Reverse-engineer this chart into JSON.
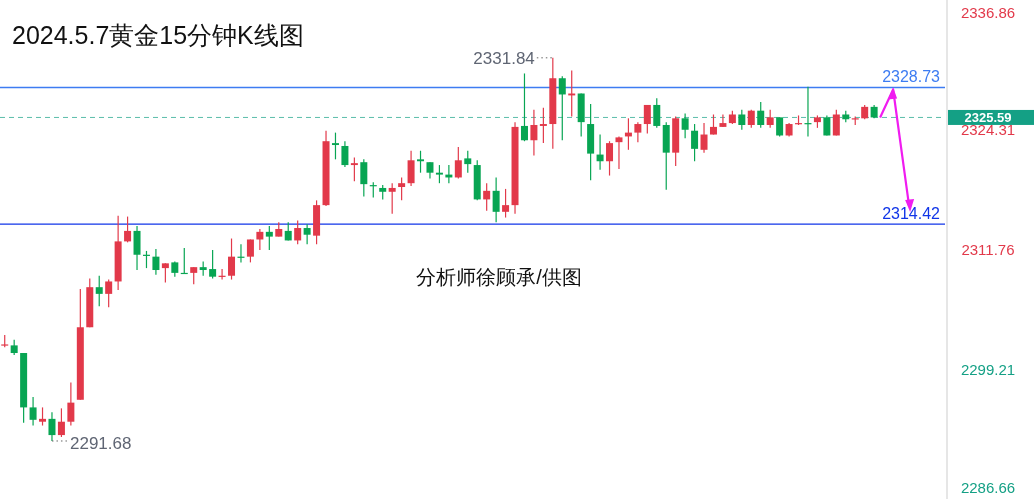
{
  "chart_data": {
    "type": "candlestick",
    "title": "2024.5.7黄金15分钟K线图",
    "categories": [
      null,
      null,
      null,
      null,
      null,
      null,
      null,
      null,
      null,
      null,
      null,
      null,
      null,
      null,
      null,
      null,
      null,
      null,
      null,
      null,
      null,
      null,
      null,
      null,
      null,
      null,
      null,
      null,
      null,
      null,
      null,
      null,
      null,
      null,
      null,
      null,
      null,
      null,
      null,
      null,
      null,
      null,
      null,
      null,
      null,
      null,
      null,
      null,
      null,
      null,
      null,
      null,
      null,
      null,
      null,
      null,
      null,
      null,
      null,
      null,
      null,
      null,
      null,
      null,
      null,
      null,
      null,
      null,
      null,
      null,
      null,
      null,
      null,
      null,
      null,
      null,
      null,
      null,
      null,
      null,
      null,
      null,
      null,
      null,
      null,
      null,
      null,
      null,
      null,
      null,
      null,
      null,
      null,
      null,
      null,
      null,
      null,
      null,
      null,
      null
    ],
    "ohlc": [
      [
        2301.7,
        2302.8,
        2301.5,
        2301.8
      ],
      [
        2301.7,
        2302.3,
        2300.7,
        2300.9
      ],
      [
        2300.9,
        2300.9,
        2293.6,
        2295.2
      ],
      [
        2295.2,
        2296.3,
        2293.3,
        2293.9
      ],
      [
        2293.7,
        2295.2,
        2293.3,
        2294.0
      ],
      [
        2294.0,
        2294.7,
        2291.68,
        2292.3
      ],
      [
        2292.3,
        2295.1,
        2292.1,
        2293.7
      ],
      [
        2293.7,
        2297.8,
        2293.3,
        2295.7
      ],
      [
        2296.0,
        2307.6,
        2296.0,
        2303.6
      ],
      [
        2303.6,
        2308.7,
        2303.6,
        2307.8
      ],
      [
        2307.8,
        2309.0,
        2305.8,
        2307.1
      ],
      [
        2307.1,
        2308.6,
        2305.7,
        2308.4
      ],
      [
        2308.4,
        2315.3,
        2307.5,
        2312.6
      ],
      [
        2312.6,
        2315.2,
        2312.5,
        2313.7
      ],
      [
        2313.7,
        2314.2,
        2309.6,
        2311.2
      ],
      [
        2311.2,
        2311.6,
        2309.8,
        2311.1
      ],
      [
        2311.0,
        2311.8,
        2309.1,
        2309.6
      ],
      [
        2309.8,
        2310.3,
        2308.3,
        2310.3
      ],
      [
        2310.4,
        2310.5,
        2308.9,
        2309.3
      ],
      [
        2309.3,
        2311.9,
        2309.2,
        2309.2
      ],
      [
        2309.3,
        2309.9,
        2308.1,
        2309.9
      ],
      [
        2309.9,
        2310.5,
        2309.0,
        2309.6
      ],
      [
        2309.7,
        2311.7,
        2308.7,
        2308.9
      ],
      [
        2308.9,
        2309.7,
        2308.6,
        2309.0
      ],
      [
        2309.0,
        2312.9,
        2308.6,
        2311.0
      ],
      [
        2311.0,
        2312.3,
        2310.4,
        2310.9
      ],
      [
        2311.0,
        2312.8,
        2310.4,
        2312.8
      ],
      [
        2312.8,
        2313.9,
        2311.7,
        2313.6
      ],
      [
        2313.6,
        2314.2,
        2311.7,
        2313.1
      ],
      [
        2313.1,
        2314.6,
        2313.1,
        2313.9
      ],
      [
        2313.7,
        2314.6,
        2312.7,
        2312.7
      ],
      [
        2312.7,
        2314.8,
        2312.3,
        2314.0
      ],
      [
        2314.0,
        2314.4,
        2312.3,
        2313.3
      ],
      [
        2313.2,
        2316.9,
        2312.3,
        2316.4
      ],
      [
        2316.4,
        2324.2,
        2316.3,
        2323.1
      ],
      [
        2322.9,
        2324.0,
        2321.2,
        2322.7
      ],
      [
        2322.6,
        2323.1,
        2320.4,
        2320.6
      ],
      [
        2320.6,
        2321.4,
        2318.9,
        2320.8
      ],
      [
        2320.9,
        2321.2,
        2317.3,
        2318.6
      ],
      [
        2318.5,
        2318.8,
        2317.2,
        2318.4
      ],
      [
        2318.2,
        2318.5,
        2317.0,
        2317.8
      ],
      [
        2317.8,
        2318.7,
        2315.5,
        2318.2
      ],
      [
        2318.3,
        2319.3,
        2316.9,
        2318.7
      ],
      [
        2318.7,
        2322.1,
        2318.4,
        2321.1
      ],
      [
        2321.2,
        2322.1,
        2319.8,
        2321.0
      ],
      [
        2320.9,
        2320.9,
        2319.2,
        2319.8
      ],
      [
        2319.8,
        2320.6,
        2318.7,
        2319.6
      ],
      [
        2319.6,
        2320.6,
        2318.7,
        2319.3
      ],
      [
        2319.3,
        2322.5,
        2319.2,
        2321.1
      ],
      [
        2321.3,
        2322.1,
        2319.8,
        2320.7
      ],
      [
        2320.6,
        2321.1,
        2316.9,
        2317.0
      ],
      [
        2317.0,
        2318.7,
        2315.8,
        2317.9
      ],
      [
        2317.9,
        2319.3,
        2314.6,
        2315.7
      ],
      [
        2315.7,
        2318.1,
        2315.1,
        2316.4
      ],
      [
        2316.4,
        2325.1,
        2315.5,
        2324.6
      ],
      [
        2324.7,
        2330.2,
        2323.1,
        2323.2
      ],
      [
        2323.2,
        2326.4,
        2321.6,
        2324.8
      ],
      [
        2324.7,
        2326.6,
        2322.9,
        2324.9
      ],
      [
        2324.9,
        2331.84,
        2322.3,
        2329.7
      ],
      [
        2329.7,
        2329.9,
        2323.2,
        2328.0
      ],
      [
        2327.9,
        2330.5,
        2325.7,
        2328.1
      ],
      [
        2328.1,
        2328.1,
        2323.6,
        2325.1
      ],
      [
        2324.9,
        2327.0,
        2319.0,
        2321.8
      ],
      [
        2321.7,
        2323.8,
        2320.1,
        2321.0
      ],
      [
        2321.0,
        2323.1,
        2319.5,
        2322.9
      ],
      [
        2323.0,
        2323.6,
        2320.2,
        2323.5
      ],
      [
        2323.6,
        2325.5,
        2322.2,
        2324.0
      ],
      [
        2324.0,
        2325.1,
        2323.0,
        2324.9
      ],
      [
        2324.9,
        2326.9,
        2323.9,
        2326.9
      ],
      [
        2326.9,
        2327.6,
        2324.5,
        2324.7
      ],
      [
        2324.8,
        2325.1,
        2318.0,
        2321.9
      ],
      [
        2321.9,
        2325.7,
        2320.5,
        2325.5
      ],
      [
        2325.5,
        2326.0,
        2323.4,
        2324.3
      ],
      [
        2324.2,
        2324.9,
        2321.0,
        2322.3
      ],
      [
        2322.2,
        2325.0,
        2321.9,
        2323.8
      ],
      [
        2323.8,
        2325.9,
        2323.8,
        2324.6
      ],
      [
        2324.6,
        2325.9,
        2324.6,
        2325.0
      ],
      [
        2325.0,
        2326.3,
        2324.9,
        2325.9
      ],
      [
        2325.9,
        2326.4,
        2324.3,
        2324.8
      ],
      [
        2324.8,
        2326.4,
        2324.5,
        2326.3
      ],
      [
        2326.3,
        2327.2,
        2324.5,
        2324.8
      ],
      [
        2324.8,
        2326.4,
        2324.5,
        2325.6
      ],
      [
        2325.6,
        2325.6,
        2323.6,
        2323.7
      ],
      [
        2323.7,
        2325.0,
        2323.6,
        2324.9
      ],
      [
        2324.9,
        2325.8,
        2324.8,
        2325.0
      ],
      [
        2325.0,
        2328.8,
        2323.6,
        2324.9
      ],
      [
        2325.1,
        2325.8,
        2324.5,
        2325.6
      ],
      [
        2325.6,
        2325.8,
        2323.7,
        2323.7
      ],
      [
        2323.7,
        2326.4,
        2323.7,
        2325.9
      ],
      [
        2325.9,
        2326.3,
        2325.1,
        2325.4
      ],
      [
        2325.4,
        2325.7,
        2324.8,
        2325.5
      ],
      [
        2325.5,
        2326.9,
        2325.4,
        2326.7
      ],
      [
        2326.7,
        2326.9,
        2325.5,
        2325.59
      ],
      null,
      null,
      null,
      null,
      null,
      null,
      null
    ],
    "ylim": [
      2285.6,
      2337.9
    ],
    "yticks": [
      2286.66,
      2299.21,
      2311.76,
      2324.31,
      2336.86
    ],
    "tick_labels": "y",
    "ref_lines": [
      {
        "axis": "y",
        "value": 2325.59,
        "label": "2325.59",
        "color": "#14a085",
        "line_style": "dashed"
      },
      {
        "axis": "y",
        "value": 2328.73,
        "label": "2328.73",
        "color": "#3d7cf2",
        "line_style": "solid"
      },
      {
        "axis": "y",
        "value": 2314.42,
        "label": "2314.42",
        "color": "#1035e8",
        "line_style": "solid"
      }
    ],
    "annotations": [
      "2331.84",
      "2291.68",
      "分析师徐顾承/供图"
    ]
  }
}
